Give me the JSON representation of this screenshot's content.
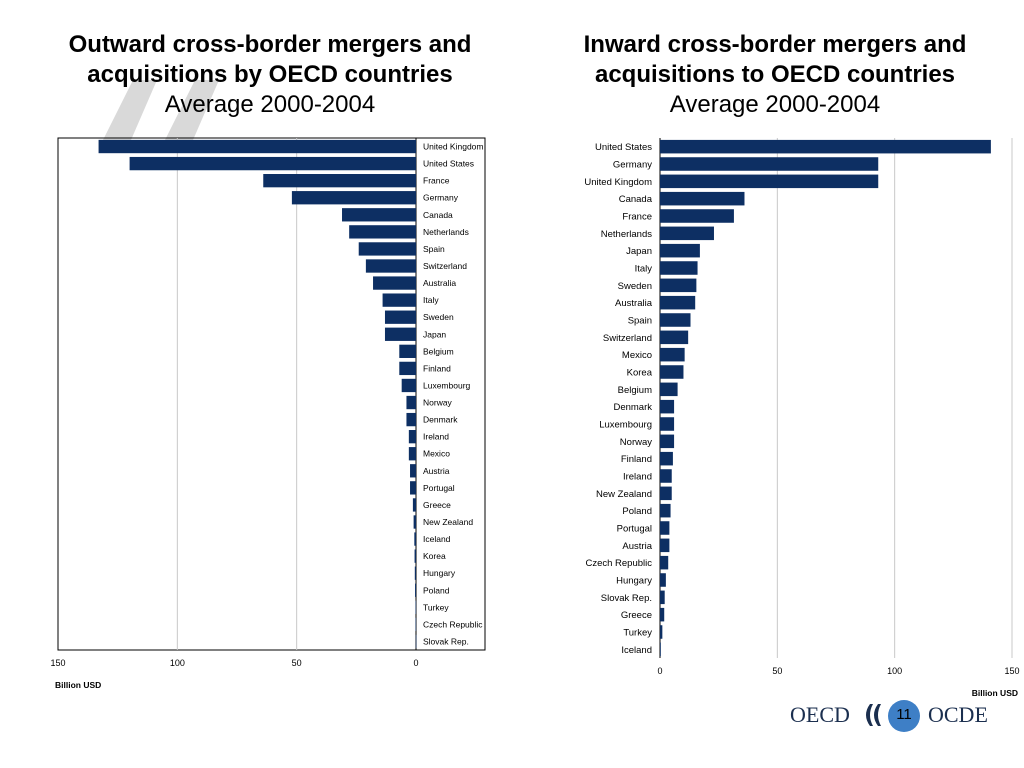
{
  "titles": {
    "left": {
      "line1": "Outward cross-border mergers and",
      "line2": "acquisitions by OECD countries",
      "sub": "Average 2000-2004"
    },
    "right": {
      "line1": "Inward cross-border mergers and",
      "line2": "acquisitions to OECD countries",
      "sub": "Average 2000-2004"
    }
  },
  "footer": {
    "logo_left": "OECD",
    "logo_right": "OCDE",
    "page_number": "11"
  },
  "colors": {
    "bar": "#0d2f63",
    "grid": "#c8c8c8",
    "circle": "#3e7fc6"
  },
  "chart_data": [
    {
      "type": "bar",
      "orientation": "horizontal",
      "direction": "reversed",
      "title": "Outward cross-border mergers and acquisitions by OECD countries",
      "subtitle": "Average 2000-2004",
      "xlabel": "Billion USD",
      "xlim": [
        0,
        150
      ],
      "xticks": [
        150,
        100,
        50,
        0
      ],
      "grid": true,
      "categories": [
        "United Kingdom",
        "United States",
        "France",
        "Germany",
        "Canada",
        "Netherlands",
        "Spain",
        "Switzerland",
        "Australia",
        "Italy",
        "Sweden",
        "Japan",
        "Belgium",
        "Finland",
        "Luxembourg",
        "Norway",
        "Denmark",
        "Ireland",
        "Mexico",
        "Austria",
        "Portugal",
        "Greece",
        "New Zealand",
        "Iceland",
        "Korea",
        "Hungary",
        "Poland",
        "Turkey",
        "Czech Republic",
        "Slovak Rep."
      ],
      "values": [
        133,
        120,
        64,
        52,
        31,
        28,
        24,
        21,
        18,
        14,
        13,
        13,
        7,
        7,
        6,
        4,
        4,
        3,
        3,
        2.5,
        2.5,
        1.3,
        1,
        0.7,
        0.6,
        0.5,
        0.4,
        0.2,
        0.2,
        0.1
      ]
    },
    {
      "type": "bar",
      "orientation": "horizontal",
      "title": "Inward cross-border mergers and acquisitions to OECD countries",
      "subtitle": "Average 2000-2004",
      "xlabel": "Billion USD",
      "xlim": [
        0,
        150
      ],
      "xticks": [
        0,
        50,
        100,
        150
      ],
      "grid": true,
      "categories": [
        "United States",
        "Germany",
        "United Kingdom",
        "Canada",
        "France",
        "Netherlands",
        "Japan",
        "Italy",
        "Sweden",
        "Australia",
        "Spain",
        "Switzerland",
        "Mexico",
        "Korea",
        "Belgium",
        "Denmark",
        "Luxembourg",
        "Norway",
        "Finland",
        "Ireland",
        "New Zealand",
        "Poland",
        "Portugal",
        "Austria",
        "Czech Republic",
        "Hungary",
        "Slovak Rep.",
        "Greece",
        "Turkey",
        "Iceland"
      ],
      "values": [
        141,
        93,
        93,
        36,
        31.5,
        23,
        17,
        16,
        15.5,
        15,
        13,
        12,
        10.5,
        10,
        7.5,
        6,
        6,
        6,
        5.5,
        5,
        5,
        4.5,
        4,
        4,
        3.5,
        2.5,
        2,
        1.8,
        1,
        0.3
      ]
    }
  ]
}
